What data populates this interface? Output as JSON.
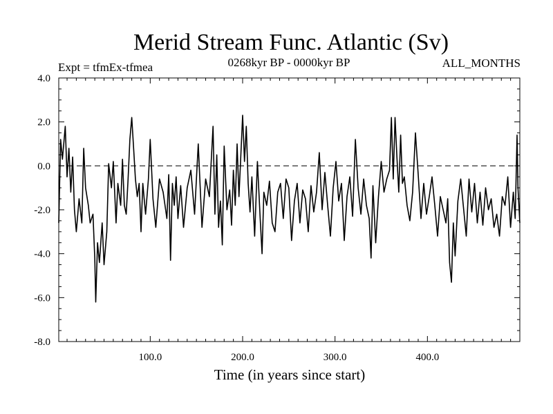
{
  "chart_data": {
    "type": "line",
    "title": "Merid Stream Func. Atlantic (Sv)",
    "subtitle_left": "Expt = tfmEx-tfmea",
    "subtitle_center": "0268kyr BP - 0000kyr BP",
    "subtitle_right": "ALL_MONTHS",
    "xlabel": "Time (in years since start)",
    "ylabel": "",
    "xlim": [
      1,
      500
    ],
    "ylim": [
      -8.0,
      4.0
    ],
    "x_ticks": [
      100,
      200,
      300,
      400
    ],
    "x_tick_labels": [
      "100.0",
      "200.0",
      "300.0",
      "400.0"
    ],
    "y_ticks": [
      4,
      2,
      0,
      -2,
      -4,
      -6,
      -8
    ],
    "y_tick_labels": [
      "4.0",
      "2.0",
      "0.0",
      "-2.0",
      "-4.0",
      "-6.0",
      "-8.0"
    ],
    "reference_line": {
      "y": 0.0,
      "style": "dashed"
    },
    "grid": false,
    "series": [
      {
        "name": "Merid Stream Func. Atlantic",
        "x": [
          1,
          3,
          5,
          8,
          10,
          12,
          14,
          16,
          18,
          20,
          23,
          26,
          28,
          30,
          33,
          35,
          38,
          40,
          41,
          43,
          45,
          48,
          50,
          53,
          55,
          58,
          60,
          63,
          65,
          68,
          70,
          72,
          74,
          76,
          78,
          80,
          82,
          84,
          86,
          88,
          90,
          92,
          95,
          98,
          100,
          103,
          106,
          110,
          114,
          118,
          120,
          122,
          124,
          126,
          128,
          130,
          133,
          136,
          140,
          144,
          148,
          152,
          156,
          160,
          164,
          168,
          170,
          172,
          174,
          176,
          178,
          180,
          183,
          186,
          188,
          190,
          192,
          194,
          196,
          198,
          200,
          202,
          204,
          206,
          208,
          210,
          213,
          216,
          219,
          221,
          223,
          226,
          229,
          232,
          235,
          238,
          241,
          244,
          247,
          250,
          253,
          256,
          259,
          262,
          265,
          268,
          271,
          274,
          277,
          280,
          283,
          286,
          289,
          292,
          295,
          298,
          301,
          304,
          307,
          310,
          313,
          316,
          319,
          322,
          325,
          328,
          331,
          334,
          337,
          339,
          341,
          344,
          347,
          350,
          353,
          356,
          359,
          361,
          363,
          365,
          367,
          369,
          371,
          373,
          375,
          378,
          381,
          384,
          387,
          390,
          393,
          396,
          399,
          402,
          405,
          408,
          411,
          414,
          417,
          420,
          422,
          424,
          426,
          428,
          430,
          433,
          436,
          439,
          442,
          445,
          448,
          451,
          454,
          457,
          460,
          463,
          466,
          469,
          472,
          475,
          478,
          481,
          484,
          487,
          490,
          493,
          495,
          497,
          498,
          500
        ],
        "values": [
          -2.6,
          1.2,
          0.3,
          1.8,
          -0.5,
          0.8,
          -1.2,
          0.4,
          -2.0,
          -3.0,
          -1.5,
          -2.6,
          0.8,
          -1.0,
          -1.8,
          -2.6,
          -2.2,
          -4.2,
          -6.2,
          -3.5,
          -4.4,
          -2.6,
          -4.5,
          -3.0,
          0.1,
          -1.0,
          0.2,
          -2.6,
          -0.8,
          -1.8,
          0.3,
          -1.8,
          -2.2,
          -0.6,
          1.2,
          2.2,
          0.8,
          -0.6,
          -1.4,
          -0.8,
          -3.0,
          -0.8,
          -2.2,
          -0.6,
          1.2,
          -1.5,
          -2.8,
          -0.6,
          -1.2,
          -2.4,
          -0.4,
          -4.3,
          -0.8,
          -1.8,
          -0.5,
          -2.4,
          -0.9,
          -2.8,
          -1.0,
          -0.2,
          -2.2,
          1.0,
          -2.8,
          -0.6,
          -1.4,
          1.8,
          -2.2,
          0.5,
          -2.8,
          -1.6,
          -3.6,
          0.9,
          -2.0,
          -1.1,
          -2.7,
          -0.2,
          -1.8,
          1.0,
          -1.4,
          0.4,
          2.3,
          0.2,
          1.8,
          -0.8,
          -2.1,
          -0.5,
          -3.2,
          0.2,
          -2.4,
          -4.0,
          -1.2,
          -1.8,
          -0.7,
          -2.6,
          -3.0,
          -1.2,
          -0.8,
          -2.4,
          -0.6,
          -1.0,
          -3.4,
          -1.6,
          -0.8,
          -2.6,
          -1.1,
          -1.5,
          -3.0,
          -0.9,
          -2.1,
          -1.2,
          0.6,
          -2.0,
          -0.3,
          -1.8,
          -3.2,
          -1.0,
          0.2,
          -1.6,
          -0.8,
          -3.4,
          -1.4,
          -0.5,
          -2.3,
          1.2,
          -1.0,
          -2.2,
          -0.6,
          -1.8,
          -2.4,
          -4.2,
          -0.9,
          -3.5,
          -1.4,
          0.2,
          -1.2,
          -0.6,
          -0.2,
          2.2,
          -0.6,
          2.2,
          0.4,
          -1.2,
          1.4,
          -0.8,
          -0.5,
          -1.8,
          -2.5,
          -1.2,
          1.5,
          -0.4,
          -2.4,
          -0.8,
          -2.2,
          -1.4,
          -0.5,
          -1.8,
          -3.2,
          -1.4,
          -2.0,
          -2.6,
          -1.5,
          -4.4,
          -5.3,
          -2.6,
          -4.1,
          -1.6,
          -0.6,
          -1.9,
          -3.2,
          -0.6,
          -2.1,
          -0.8,
          -2.6,
          -1.2,
          -2.7,
          -1.0,
          -2.0,
          -1.5,
          -2.8,
          -2.2,
          -3.2,
          -1.4,
          -1.8,
          -0.5,
          -2.8,
          -1.2,
          -2.4,
          1.4,
          -1.0,
          -2.6
        ]
      }
    ]
  }
}
